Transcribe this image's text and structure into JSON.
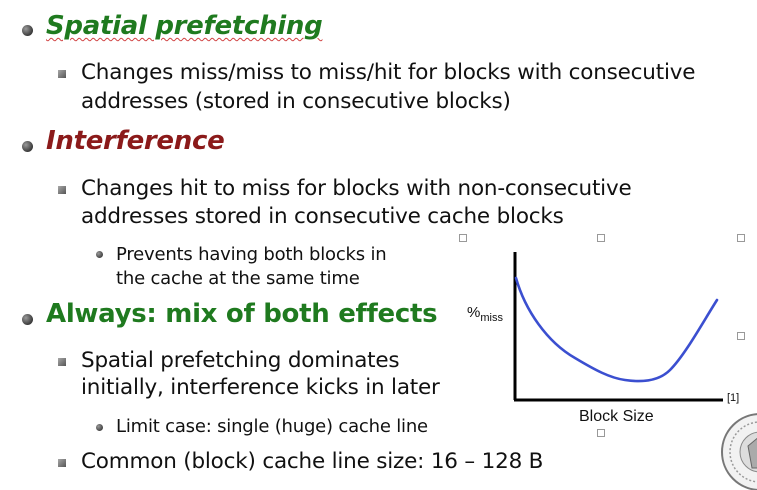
{
  "slide": {
    "sections": [
      {
        "heading": "Spatial prefetching",
        "color": "#1f7a1f",
        "items": [
          {
            "lines": [
              "Changes miss/miss to miss/hit for blocks with consecutive",
              "addresses (stored in consecutive blocks)"
            ]
          }
        ]
      },
      {
        "heading": "Interference",
        "color": "#8b1a1a",
        "items": [
          {
            "lines": [
              "Changes hit to miss for blocks with non-consecutive",
              "addresses stored in consecutive cache blocks"
            ],
            "sub": [
              "Prevents having both blocks in",
              "the cache at the same time"
            ]
          }
        ]
      },
      {
        "heading": "Always: mix of both effects",
        "color": "#1f7a1f",
        "items": [
          {
            "lines": [
              "Spatial prefetching dominates",
              "initially, interference kicks in later"
            ],
            "sub": [
              "Limit case: single (huge) cache line"
            ]
          },
          {
            "lines": [
              "Common (block) cache line size: 16 – 128 B"
            ]
          }
        ]
      }
    ],
    "figure": {
      "ylabel_main": "%",
      "ylabel_sub": "miss",
      "xlabel": "Block Size",
      "ref": "[1]",
      "curve_color": "#3b4fd0"
    }
  }
}
